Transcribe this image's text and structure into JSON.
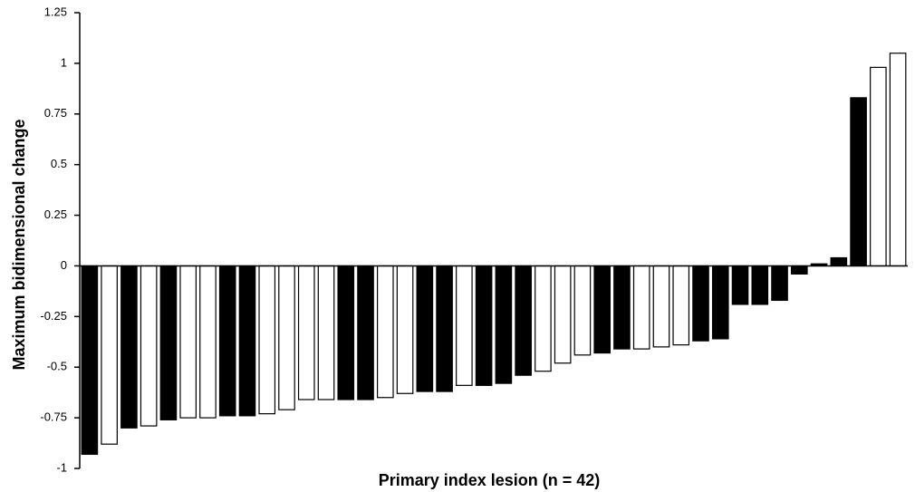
{
  "chart_data": {
    "type": "bar",
    "y_label": "Maximum bidimensional change",
    "x_label": "Primary index lesion (n = 42)",
    "values": [
      -0.93,
      -0.88,
      -0.8,
      -0.79,
      -0.76,
      -0.75,
      -0.75,
      -0.74,
      -0.74,
      -0.73,
      -0.71,
      -0.66,
      -0.66,
      -0.66,
      -0.66,
      -0.65,
      -0.63,
      -0.62,
      -0.62,
      -0.59,
      -0.59,
      -0.58,
      -0.54,
      -0.52,
      -0.48,
      -0.44,
      -0.43,
      -0.41,
      -0.41,
      -0.4,
      -0.39,
      -0.37,
      -0.36,
      -0.19,
      -0.19,
      -0.17,
      -0.04,
      0.01,
      0.04,
      0.83,
      0.98,
      1.05
    ],
    "colors": [
      "#000000",
      "#ffffff",
      "#000000",
      "#ffffff",
      "#000000",
      "#ffffff",
      "#ffffff",
      "#000000",
      "#000000",
      "#ffffff",
      "#ffffff",
      "#ffffff",
      "#ffffff",
      "#000000",
      "#000000",
      "#ffffff",
      "#ffffff",
      "#000000",
      "#000000",
      "#ffffff",
      "#000000",
      "#000000",
      "#000000",
      "#ffffff",
      "#ffffff",
      "#ffffff",
      "#000000",
      "#000000",
      "#ffffff",
      "#ffffff",
      "#ffffff",
      "#000000",
      "#000000",
      "#000000",
      "#000000",
      "#000000",
      "#000000",
      "#000000",
      "#000000",
      "#000000",
      "#ffffff",
      "#ffffff"
    ],
    "ylim": [
      -1,
      1.25
    ],
    "yticks": [
      -1,
      -0.75,
      -0.5,
      -0.25,
      0,
      0.25,
      0.5,
      0.75,
      1,
      1.25
    ],
    "grid": false
  }
}
